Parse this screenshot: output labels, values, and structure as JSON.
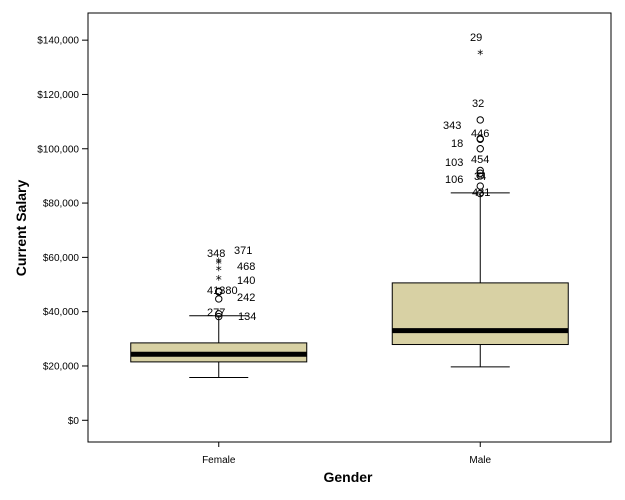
{
  "chart_data": {
    "type": "boxplot",
    "xlabel": "Gender",
    "ylabel": "Current Salary",
    "ylim": [
      -8000,
      150000
    ],
    "yticks": [
      0,
      20000,
      40000,
      60000,
      80000,
      100000,
      120000,
      140000
    ],
    "ytick_labels": [
      "$0",
      "$20,000",
      "$40,000",
      "$60,000",
      "$80,000",
      "$100,000",
      "$120,000",
      "$140,000"
    ],
    "box_color": "#d8d1a4",
    "groups": [
      {
        "category": "Female",
        "whisker_low": 15750,
        "q1": 21500,
        "median": 24300,
        "q3": 28500,
        "whisker_high": 38500,
        "outliers": [
          {
            "id": "134",
            "value": 38200,
            "marker": "circle",
            "label_side": "right"
          },
          {
            "id": "277",
            "value": 39200,
            "marker": "circle",
            "label_side": "left"
          },
          {
            "id": "242",
            "value": 44700,
            "marker": "circle",
            "label_side": "right"
          },
          {
            "id": "41",
            "value": 47300,
            "marker": "circle",
            "label_side": "left"
          },
          {
            "id": "380",
            "value": 47500,
            "marker": "circle",
            "label_side": "left"
          },
          {
            "id": "140",
            "value": 52000,
            "marker": "star",
            "label_side": "right"
          },
          {
            "id": "468",
            "value": 55500,
            "marker": "star",
            "label_side": "right"
          },
          {
            "id": "348",
            "value": 58000,
            "marker": "star",
            "label_side": "left"
          },
          {
            "id": "371",
            "value": 58500,
            "marker": "star",
            "label_side": "right"
          }
        ],
        "visible_outlier_labels": [
          "348",
          "371",
          "468",
          "140",
          "41380",
          "242",
          "277",
          "134"
        ]
      },
      {
        "category": "Male",
        "whisker_low": 19650,
        "q1": 27900,
        "median": 33000,
        "q3": 50600,
        "whisker_high": 83750,
        "outliers": [
          {
            "id": "431",
            "value": 83500,
            "marker": "circle",
            "label_side": "right"
          },
          {
            "id": "106",
            "value": 86250,
            "marker": "circle",
            "label_side": "left"
          },
          {
            "id": "34",
            "value": 90000,
            "marker": "circle",
            "label_side": "right"
          },
          {
            "id": "103",
            "value": 91000,
            "marker": "circle",
            "label_side": "left"
          },
          {
            "id": "454",
            "value": 92000,
            "marker": "circle",
            "label_side": "right"
          },
          {
            "id": "18",
            "value": 100000,
            "marker": "circle",
            "label_side": "left"
          },
          {
            "id": "446",
            "value": 103750,
            "marker": "circle",
            "label_side": "right"
          },
          {
            "id": "343",
            "value": 103500,
            "marker": "circle",
            "label_side": "left"
          },
          {
            "id": "32",
            "value": 110625,
            "marker": "circle",
            "label_side": "right"
          },
          {
            "id": "29",
            "value": 135000,
            "marker": "star",
            "label_side": "right"
          }
        ],
        "visible_outlier_labels": [
          "29",
          "32",
          "343",
          "446",
          "18",
          "103",
          "454",
          "106",
          "34",
          "431"
        ]
      }
    ]
  }
}
